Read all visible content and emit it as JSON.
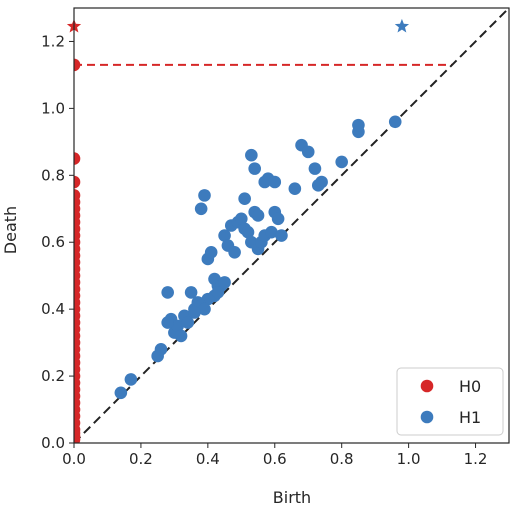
{
  "chart_data": {
    "type": "scatter",
    "title": "",
    "xlabel": "Birth",
    "ylabel": "Death",
    "xlim": [
      0.0,
      1.3
    ],
    "ylim": [
      0.0,
      1.3
    ],
    "xticks": [
      "0.0",
      "0.2",
      "0.4",
      "0.6",
      "0.8",
      "1.0",
      "1.2"
    ],
    "yticks": [
      "0.0",
      "0.2",
      "0.4",
      "0.6",
      "0.8",
      "1.0",
      "1.2"
    ],
    "grid": false,
    "legend_position": "bottom-right",
    "diagonal": true,
    "infinity_level": 1.245,
    "infinity_line_y": 1.13,
    "series": [
      {
        "name": "H0",
        "color": "#d62728",
        "x": [
          0,
          0,
          0,
          0,
          0,
          0,
          0,
          0,
          0,
          0,
          0,
          0,
          0,
          0,
          0,
          0,
          0,
          0,
          0,
          0,
          0,
          0,
          0,
          0,
          0,
          0,
          0,
          0,
          0,
          0,
          0,
          0,
          0,
          0,
          0,
          0,
          0,
          0,
          0,
          0,
          0,
          0
        ],
        "y": [
          1.13,
          0.85,
          0.78,
          0.74,
          0.72,
          0.7,
          0.68,
          0.66,
          0.64,
          0.62,
          0.6,
          0.58,
          0.56,
          0.54,
          0.52,
          0.5,
          0.48,
          0.46,
          0.44,
          0.42,
          0.4,
          0.38,
          0.36,
          0.34,
          0.32,
          0.3,
          0.28,
          0.26,
          0.24,
          0.22,
          0.2,
          0.18,
          0.16,
          0.14,
          0.12,
          0.1,
          0.08,
          0.06,
          0.04,
          0.03,
          0.02,
          0.01
        ],
        "infinite_x": [
          0.0
        ]
      },
      {
        "name": "H1",
        "color": "#3d7bbd",
        "x": [
          0.14,
          0.17,
          0.25,
          0.26,
          0.28,
          0.29,
          0.3,
          0.31,
          0.32,
          0.33,
          0.34,
          0.35,
          0.36,
          0.37,
          0.38,
          0.39,
          0.4,
          0.4,
          0.41,
          0.42,
          0.43,
          0.44,
          0.45,
          0.45,
          0.46,
          0.47,
          0.48,
          0.49,
          0.5,
          0.51,
          0.51,
          0.52,
          0.53,
          0.53,
          0.54,
          0.54,
          0.55,
          0.55,
          0.56,
          0.57,
          0.57,
          0.58,
          0.59,
          0.6,
          0.6,
          0.61,
          0.62,
          0.66,
          0.68,
          0.7,
          0.72,
          0.73,
          0.74,
          0.8,
          0.85,
          0.85,
          0.96,
          0.38,
          0.39,
          0.42,
          0.28,
          0.36,
          0.43
        ],
        "y": [
          0.15,
          0.19,
          0.26,
          0.28,
          0.45,
          0.37,
          0.33,
          0.35,
          0.32,
          0.38,
          0.36,
          0.45,
          0.4,
          0.42,
          0.7,
          0.74,
          0.43,
          0.55,
          0.57,
          0.49,
          0.47,
          0.47,
          0.48,
          0.62,
          0.59,
          0.65,
          0.57,
          0.66,
          0.67,
          0.64,
          0.73,
          0.63,
          0.6,
          0.86,
          0.69,
          0.82,
          0.68,
          0.58,
          0.6,
          0.62,
          0.78,
          0.79,
          0.63,
          0.69,
          0.78,
          0.67,
          0.62,
          0.76,
          0.89,
          0.87,
          0.82,
          0.77,
          0.78,
          0.84,
          0.93,
          0.95,
          0.96,
          0.41,
          0.4,
          0.44,
          0.36,
          0.39,
          0.45
        ],
        "infinite_x": [
          0.98
        ]
      }
    ]
  }
}
